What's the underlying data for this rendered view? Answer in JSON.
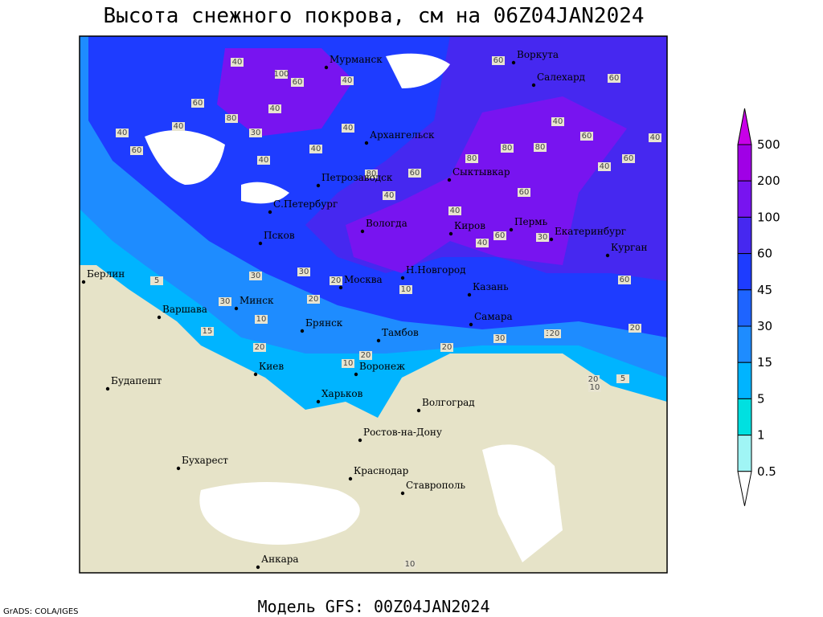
{
  "title": "Высота снежного покрова, см на 06Z04JAN2024",
  "model": "Модель GFS: 00Z04JAN2024",
  "credit": "GrADS: COLA/IGES",
  "legend": {
    "levels": [
      {
        "label": "500",
        "color": "#c800e8"
      },
      {
        "label": "200",
        "color": "#a000e6"
      },
      {
        "label": "100",
        "color": "#7814f0"
      },
      {
        "label": "60",
        "color": "#4628f0"
      },
      {
        "label": "45",
        "color": "#1e3cff"
      },
      {
        "label": "30",
        "color": "#1e64ff"
      },
      {
        "label": "15",
        "color": "#1e8cff"
      },
      {
        "label": "5",
        "color": "#00b4ff"
      },
      {
        "label": "1",
        "color": "#00e0e0"
      },
      {
        "label": "0.5",
        "color": "#a0f5f5"
      }
    ]
  },
  "cities": [
    "Мурманск",
    "Воркута",
    "Салехард",
    "Архангельск",
    "Сыктывкар",
    "Петрозаводск",
    "С.Петербург",
    "Вологда",
    "Киров",
    "Пермь",
    "Екатеринбург",
    "Курган",
    "Псков",
    "Берлин",
    "Москва",
    "Н.Новгород",
    "Казань",
    "Минск",
    "Варшава",
    "Брянск",
    "Тамбов",
    "Самара",
    "Воронеж",
    "Киев",
    "Будапешт",
    "Харьков",
    "Волгоград",
    "Ростов-на-Дону",
    "Бухарест",
    "Краснодар",
    "Ставрополь",
    "Анкара"
  ],
  "contour_labels": [
    "40",
    "100",
    "60",
    "40",
    "60",
    "80",
    "30",
    "40",
    "40",
    "60",
    "40",
    "40",
    "40",
    "40",
    "60",
    "80",
    "80",
    "80",
    "40",
    "60",
    "60",
    "40",
    "40",
    "60",
    "40",
    "60",
    "80",
    "60",
    "40",
    "40",
    "30",
    "60",
    "60",
    "30",
    "30",
    "20",
    "10",
    "30",
    "20",
    "10",
    "20",
    "5",
    "15",
    "20",
    "10",
    "30",
    "30",
    "20",
    "20",
    "20",
    "20",
    "10",
    "5",
    "10"
  ]
}
